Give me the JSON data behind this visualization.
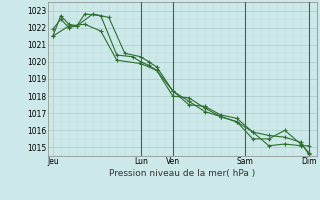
{
  "background_color": "#cce8e8",
  "grid_major_color": "#aacccc",
  "grid_minor_color": "#bbdddd",
  "vline_color": "#446644",
  "line_color": "#2d6e2d",
  "marker_color": "#2d6e2d",
  "xlabel": "Pression niveau de la mer( hPa )",
  "ylim": [
    1014.5,
    1023.5
  ],
  "yticks": [
    1015,
    1016,
    1017,
    1018,
    1019,
    1020,
    1021,
    1022,
    1023
  ],
  "day_labels": [
    "Jeu",
    "Lun",
    "Ven",
    "Sam",
    "Dim"
  ],
  "day_positions": [
    0.0,
    5.5,
    7.5,
    12.0,
    16.0
  ],
  "vline_positions": [
    5.5,
    7.5,
    12.0,
    16.0
  ],
  "series1_x": [
    0.0,
    0.5,
    1.0,
    1.5,
    2.5,
    3.5,
    4.5,
    5.5,
    6.0,
    6.5,
    7.5,
    8.5,
    9.5,
    10.5,
    11.5,
    12.5,
    13.5,
    14.5,
    15.5,
    16.0
  ],
  "series1_y": [
    1021.5,
    1022.7,
    1022.2,
    1022.1,
    1022.8,
    1022.6,
    1020.5,
    1020.3,
    1020.0,
    1019.7,
    1018.3,
    1017.5,
    1017.4,
    1016.9,
    1016.7,
    1015.9,
    1015.1,
    1015.2,
    1015.1,
    1015.1
  ],
  "series2_x": [
    0.0,
    1.0,
    2.0,
    3.0,
    4.0,
    5.5,
    6.5,
    7.5,
    8.5,
    9.5,
    10.5,
    11.5,
    12.5,
    13.5,
    14.5,
    15.5,
    16.0
  ],
  "series2_y": [
    1021.5,
    1022.1,
    1022.2,
    1021.8,
    1020.1,
    1019.9,
    1019.5,
    1018.0,
    1017.9,
    1017.3,
    1016.8,
    1016.5,
    1015.9,
    1015.7,
    1015.6,
    1015.3,
    1014.6
  ],
  "series3_x": [
    0.0,
    0.5,
    1.0,
    1.5,
    2.0,
    3.0,
    4.0,
    5.0,
    5.5,
    6.0,
    6.5,
    7.5,
    8.5,
    9.5,
    10.5,
    11.5,
    12.5,
    13.5,
    14.5,
    15.5,
    16.0
  ],
  "series3_y": [
    1021.9,
    1022.5,
    1022.0,
    1022.1,
    1022.8,
    1022.7,
    1020.4,
    1020.3,
    1020.0,
    1019.8,
    1019.5,
    1018.3,
    1017.7,
    1017.1,
    1016.8,
    1016.5,
    1015.5,
    1015.5,
    1016.0,
    1015.2,
    1014.7
  ]
}
